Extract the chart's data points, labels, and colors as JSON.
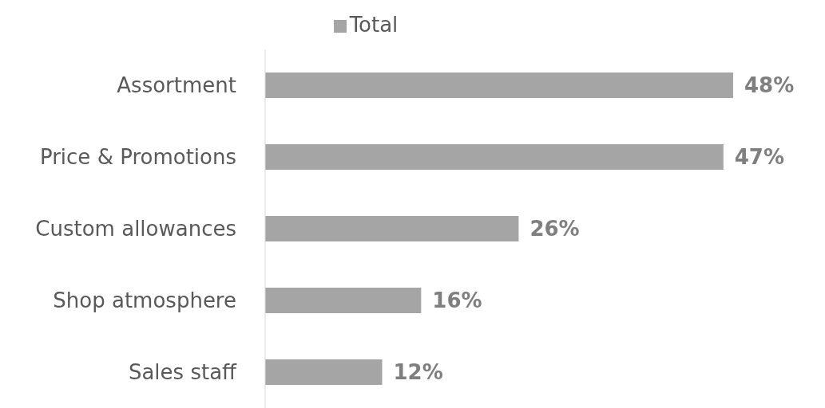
{
  "chart_data": {
    "type": "bar",
    "orientation": "horizontal",
    "categories": [
      "Assortment",
      "Price & Promotions",
      "Custom allowances",
      "Shop atmosphere",
      "Sales staff"
    ],
    "series": [
      {
        "name": "Total",
        "color": "#a5a5a5",
        "values": [
          48,
          47,
          26,
          16,
          12
        ],
        "value_labels": [
          "48%",
          "47%",
          "26%",
          "16%",
          "12%"
        ]
      }
    ],
    "legend": "top",
    "grid": false
  }
}
